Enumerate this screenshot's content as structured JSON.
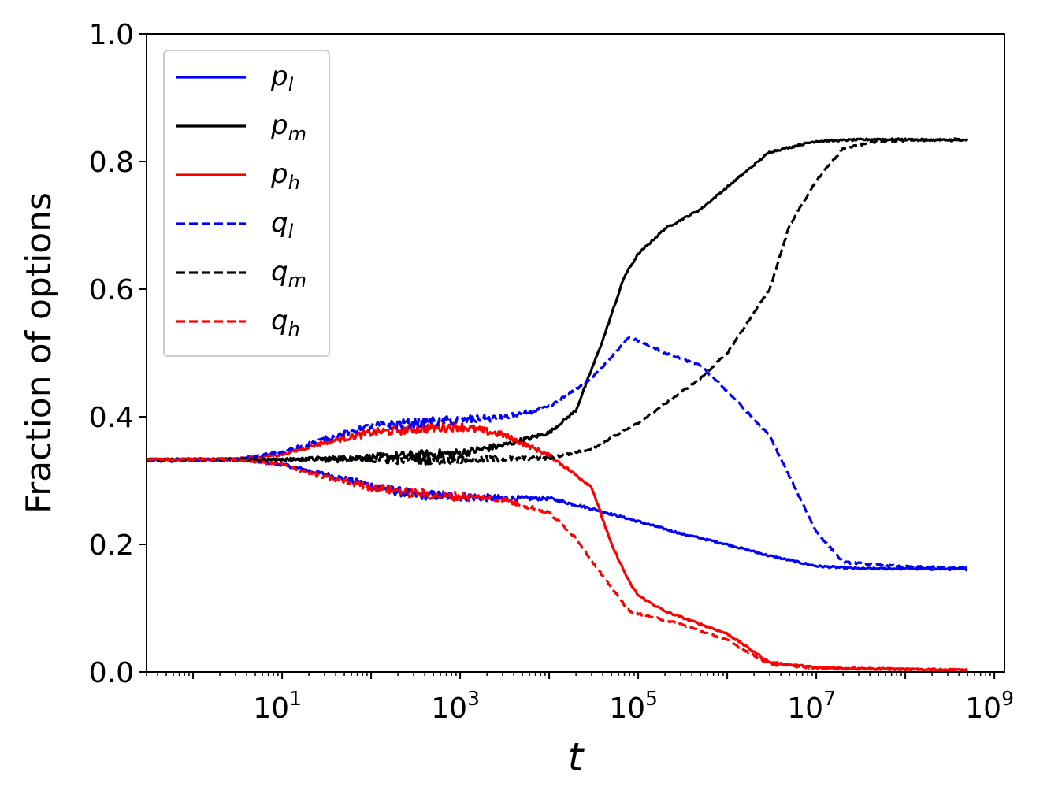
{
  "chart_data": {
    "type": "line",
    "title": "",
    "xlabel": "t",
    "ylabel": "Fraction of options",
    "xscale": "log",
    "xlim": [
      0.3,
      1300000000
    ],
    "ylim": [
      0.0,
      1.0
    ],
    "yticks": [
      "0.0",
      "0.2",
      "0.4",
      "0.6",
      "0.8",
      "1.0"
    ],
    "xticks": [
      {
        "value": 10,
        "base": "10",
        "exp": "1"
      },
      {
        "value": 1000,
        "base": "10",
        "exp": "3"
      },
      {
        "value": 100000,
        "base": "10",
        "exp": "5"
      },
      {
        "value": 10000000,
        "base": "10",
        "exp": "7"
      },
      {
        "value": 1000000000,
        "base": "10",
        "exp": "9"
      }
    ],
    "legend_position": "top-left",
    "series": [
      {
        "name": "p_l",
        "symbol": "p",
        "sub": "l",
        "color": "#0000ff",
        "dash": "solid",
        "points": [
          [
            0.3,
            0.333
          ],
          [
            3,
            0.334
          ],
          [
            10,
            0.325
          ],
          [
            30,
            0.31
          ],
          [
            100,
            0.292
          ],
          [
            300,
            0.278
          ],
          [
            1000,
            0.275
          ],
          [
            3000,
            0.272
          ],
          [
            10000,
            0.272
          ],
          [
            30000,
            0.256
          ],
          [
            100000,
            0.236
          ],
          [
            300000,
            0.217
          ],
          [
            1000000,
            0.2
          ],
          [
            3000000,
            0.182
          ],
          [
            10000000,
            0.166
          ],
          [
            30000000,
            0.162
          ],
          [
            100000000,
            0.162
          ],
          [
            500000000,
            0.161
          ]
        ]
      },
      {
        "name": "p_m",
        "symbol": "p",
        "sub": "m",
        "color": "#000000",
        "dash": "solid",
        "points": [
          [
            0.3,
            0.333
          ],
          [
            3,
            0.333
          ],
          [
            10,
            0.333
          ],
          [
            100,
            0.336
          ],
          [
            1000,
            0.343
          ],
          [
            3000,
            0.355
          ],
          [
            10000,
            0.375
          ],
          [
            20000,
            0.41
          ],
          [
            40000,
            0.52
          ],
          [
            70000,
            0.62
          ],
          [
            100000,
            0.655
          ],
          [
            200000,
            0.695
          ],
          [
            500000,
            0.725
          ],
          [
            1000000,
            0.76
          ],
          [
            3000000,
            0.815
          ],
          [
            10000000,
            0.832
          ],
          [
            50000000,
            0.835
          ],
          [
            500000000,
            0.833
          ]
        ]
      },
      {
        "name": "p_h",
        "symbol": "p",
        "sub": "h",
        "color": "#ff0000",
        "dash": "solid",
        "points": [
          [
            0.3,
            0.333
          ],
          [
            3,
            0.334
          ],
          [
            10,
            0.341
          ],
          [
            30,
            0.36
          ],
          [
            100,
            0.375
          ],
          [
            300,
            0.381
          ],
          [
            1000,
            0.385
          ],
          [
            3000,
            0.372
          ],
          [
            10000,
            0.34
          ],
          [
            30000,
            0.29
          ],
          [
            50000,
            0.2
          ],
          [
            80000,
            0.14
          ],
          [
            100000,
            0.12
          ],
          [
            200000,
            0.095
          ],
          [
            1000000,
            0.06
          ],
          [
            3000000,
            0.015
          ],
          [
            10000000,
            0.007
          ],
          [
            100000000,
            0.004
          ],
          [
            500000000,
            0.003
          ]
        ]
      },
      {
        "name": "q_l",
        "symbol": "q",
        "sub": "l",
        "color": "#0000ff",
        "dash": "dashed",
        "points": [
          [
            0.3,
            0.33
          ],
          [
            3,
            0.333
          ],
          [
            10,
            0.345
          ],
          [
            30,
            0.365
          ],
          [
            100,
            0.385
          ],
          [
            300,
            0.39
          ],
          [
            1000,
            0.395
          ],
          [
            3000,
            0.398
          ],
          [
            10000,
            0.415
          ],
          [
            30000,
            0.46
          ],
          [
            80000,
            0.525
          ],
          [
            200000,
            0.5
          ],
          [
            500000,
            0.48
          ],
          [
            1000000,
            0.44
          ],
          [
            3000000,
            0.37
          ],
          [
            10000000,
            0.22
          ],
          [
            20000000,
            0.172
          ],
          [
            100000000,
            0.165
          ],
          [
            500000000,
            0.163
          ]
        ]
      },
      {
        "name": "q_m",
        "symbol": "q",
        "sub": "m",
        "color": "#000000",
        "dash": "dashed",
        "points": [
          [
            0.3,
            0.333
          ],
          [
            3,
            0.333
          ],
          [
            10,
            0.333
          ],
          [
            100,
            0.333
          ],
          [
            1000,
            0.333
          ],
          [
            10000,
            0.335
          ],
          [
            30000,
            0.35
          ],
          [
            100000,
            0.39
          ],
          [
            500000,
            0.46
          ],
          [
            1000000,
            0.5
          ],
          [
            3000000,
            0.6
          ],
          [
            5000000,
            0.7
          ],
          [
            10000000,
            0.77
          ],
          [
            20000000,
            0.82
          ],
          [
            50000000,
            0.832
          ],
          [
            500000000,
            0.835
          ]
        ]
      },
      {
        "name": "q_h",
        "symbol": "q",
        "sub": "h",
        "color": "#ff0000",
        "dash": "dashed",
        "points": [
          [
            0.3,
            0.333
          ],
          [
            3,
            0.333
          ],
          [
            10,
            0.325
          ],
          [
            30,
            0.305
          ],
          [
            100,
            0.29
          ],
          [
            300,
            0.28
          ],
          [
            1000,
            0.275
          ],
          [
            3000,
            0.27
          ],
          [
            10000,
            0.25
          ],
          [
            20000,
            0.21
          ],
          [
            40000,
            0.15
          ],
          [
            80000,
            0.095
          ],
          [
            300000,
            0.075
          ],
          [
            1000000,
            0.05
          ],
          [
            3000000,
            0.012
          ],
          [
            10000000,
            0.006
          ],
          [
            500000000,
            0.003
          ]
        ]
      }
    ]
  }
}
